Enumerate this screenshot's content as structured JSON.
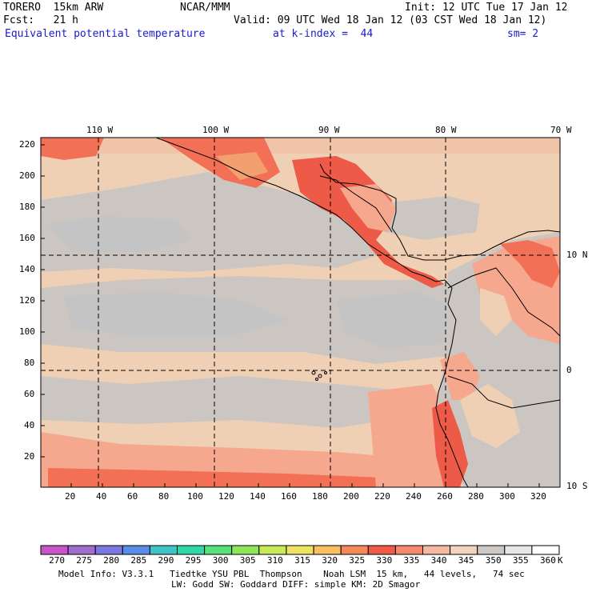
{
  "header": {
    "model": "TORERO  15km ARW",
    "center": "NCAR/MMM",
    "init": "Init: 12 UTC Tue 17 Jan 12",
    "fcst": "Fcst:   21 h",
    "valid": "Valid: 09 UTC Wed 18 Jan 12 (03 CST Wed 18 Jan 12)",
    "field": "Equivalent potential temperature",
    "level": "at k-index =  44",
    "smooth": "sm= 2"
  },
  "map": {
    "top_lon_labels": [
      "110 W",
      "100 W",
      "90 W",
      "80 W",
      "70 W"
    ],
    "right_lat_labels": [
      "10 N",
      "0",
      "10 S"
    ],
    "y_grid_labels": [
      "220",
      "200",
      "180",
      "160",
      "140",
      "120",
      "100",
      "80",
      "60",
      "40",
      "20"
    ],
    "x_grid_labels": [
      "20",
      "40",
      "60",
      "80",
      "100",
      "120",
      "140",
      "160",
      "180",
      "200",
      "220",
      "240",
      "260",
      "280",
      "300",
      "320"
    ],
    "colors": {
      "c345": "#cbc6c2",
      "c350": "#c4c4c4",
      "c340": "#f0d0b4",
      "c335": "#f5a88e",
      "c330": "#f27056",
      "c325": "#ee5a48",
      "c320": "#f2a070"
    }
  },
  "colorbar": {
    "labels": [
      "270",
      "275",
      "280",
      "285",
      "290",
      "295",
      "300",
      "305",
      "310",
      "315",
      "320",
      "325",
      "330",
      "335",
      "340",
      "345",
      "350",
      "355",
      "360"
    ],
    "unit": "K",
    "swatches": [
      "#c855c8",
      "#a06ecc",
      "#7a78e0",
      "#5a8ee6",
      "#3ec4c4",
      "#30d8a8",
      "#56e27a",
      "#90e65a",
      "#c8ea58",
      "#eee262",
      "#f8c060",
      "#f4885a",
      "#f05a48",
      "#f48870",
      "#f6b8a0",
      "#f2d4bc",
      "#cdc8c4",
      "#e6e6e6",
      "#ffffff"
    ]
  },
  "footer": {
    "line1": "Model Info: V3.3.1   Tiedtke YSU PBL  Thompson    Noah LSM  15 km,   44 levels,   74 sec",
    "line2": "LW: Godd SW: Goddard DIFF: simple KM: 2D Smagor"
  }
}
